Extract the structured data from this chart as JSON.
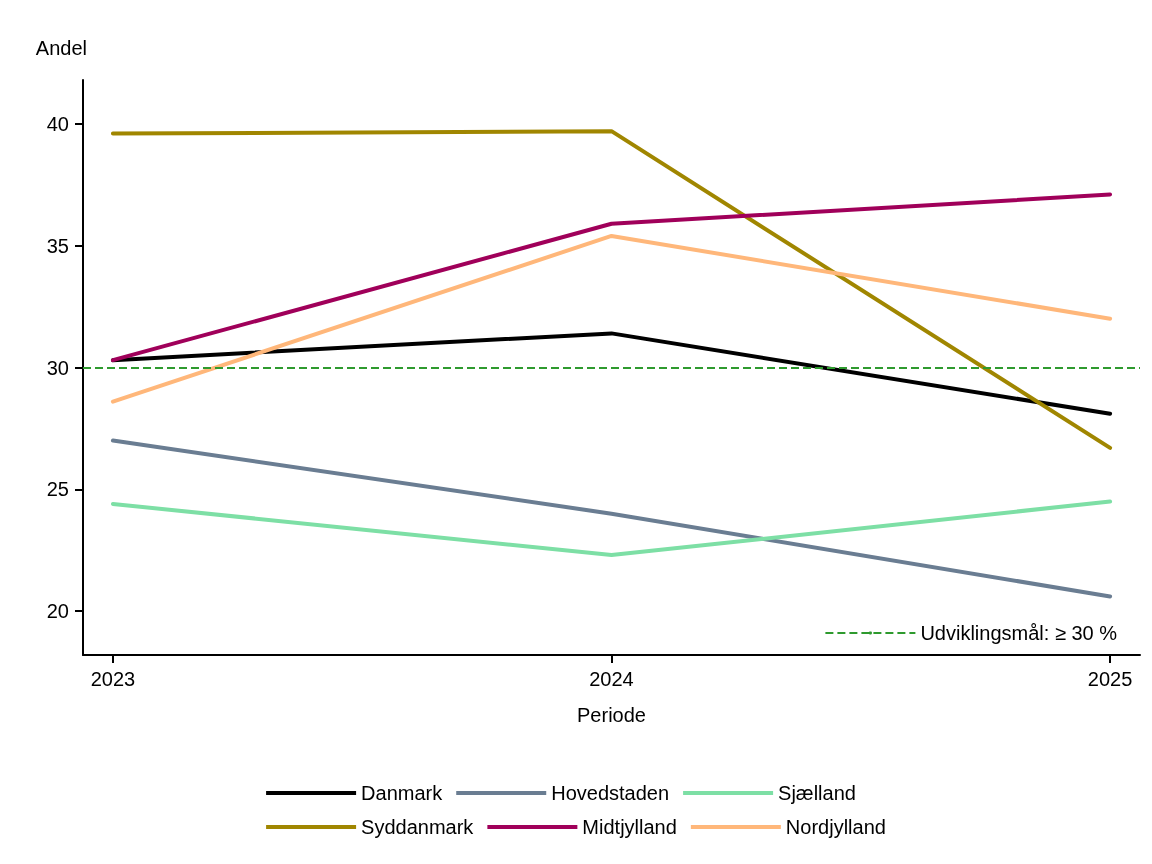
{
  "chart_data": {
    "type": "line",
    "xlabel": "Periode",
    "ylabel": "Andel",
    "x": [
      2023,
      2024,
      2025
    ],
    "series": [
      {
        "name": "Danmark",
        "color": "#000000",
        "values": [
          30.3,
          31.4,
          28.1
        ]
      },
      {
        "name": "Hovedstaden",
        "color": "#6a7d92",
        "values": [
          27.0,
          24.0,
          20.6
        ]
      },
      {
        "name": "Sjælland",
        "color": "#7ddfa5",
        "values": [
          24.4,
          22.3,
          24.5
        ]
      },
      {
        "name": "Syddanmark",
        "color": "#a08600",
        "values": [
          39.6,
          39.7,
          26.7
        ]
      },
      {
        "name": "Midtjylland",
        "color": "#a0005a",
        "values": [
          30.3,
          35.9,
          37.1
        ]
      },
      {
        "name": "Nordjylland",
        "color": "#ffb77a",
        "values": [
          28.6,
          35.4,
          32.0
        ]
      }
    ],
    "xlim": [
      2022.94,
      2025.06
    ],
    "xticks": [
      2023,
      2024,
      2025
    ],
    "ylim": [
      18.2,
      41.8
    ],
    "yticks": [
      20,
      25,
      30,
      35,
      40
    ],
    "ref_lines": [
      {
        "axis": "y",
        "value": 30,
        "label": "Udviklingsmål: ≥ 30 %",
        "color": "#2e9a2e",
        "line_style": "dashed"
      }
    ],
    "grid": false,
    "legend": "bottom",
    "marker": "none",
    "line_style": "solid"
  }
}
